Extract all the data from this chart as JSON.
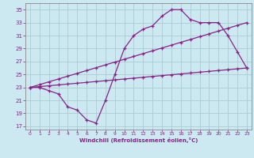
{
  "xlabel": "Windchill (Refroidissement éolien,°C)",
  "bg_color": "#cce8f0",
  "grid_color": "#aaccd4",
  "line_color": "#882288",
  "spine_color": "#888888",
  "x_ticks": [
    0,
    1,
    2,
    3,
    4,
    5,
    6,
    7,
    8,
    9,
    10,
    11,
    12,
    13,
    14,
    15,
    16,
    17,
    18,
    19,
    20,
    21,
    22,
    23
  ],
  "y_ticks": [
    17,
    19,
    21,
    23,
    25,
    27,
    29,
    31,
    33,
    35
  ],
  "ylim": [
    16.5,
    36.0
  ],
  "xlim": [
    -0.5,
    23.5
  ],
  "line1_x": [
    0,
    1,
    2,
    3,
    4,
    5,
    6,
    7,
    8,
    9,
    10,
    11,
    12,
    13,
    14,
    15,
    16,
    17,
    18,
    19,
    20,
    21,
    22,
    23
  ],
  "line1_y": [
    23,
    23,
    22.5,
    22,
    20,
    19.5,
    18,
    17.5,
    21,
    25,
    29,
    31,
    32,
    32.5,
    34,
    35,
    35,
    33.5,
    33,
    33,
    33,
    31,
    28.5,
    26
  ],
  "line2_x": [
    0,
    1,
    2,
    3,
    4,
    5,
    6,
    7,
    8,
    9,
    10,
    11,
    12,
    13,
    14,
    15,
    16,
    17,
    18,
    19,
    20,
    21,
    22,
    23
  ],
  "line2_y": [
    23.0,
    23.13,
    23.26,
    23.39,
    23.52,
    23.65,
    23.78,
    23.91,
    24.04,
    24.17,
    24.3,
    24.43,
    24.56,
    24.7,
    24.83,
    24.96,
    25.09,
    25.22,
    25.35,
    25.48,
    25.61,
    25.74,
    25.87,
    26.0
  ],
  "line3_x": [
    0,
    1,
    2,
    3,
    4,
    5,
    6,
    7,
    8,
    9,
    10,
    11,
    12,
    13,
    14,
    15,
    16,
    17,
    18,
    19,
    20,
    21,
    22,
    23
  ],
  "line3_y": [
    23.0,
    23.43,
    23.87,
    24.3,
    24.74,
    25.17,
    25.61,
    26.04,
    26.48,
    26.91,
    27.35,
    27.78,
    28.22,
    28.65,
    29.09,
    29.52,
    29.96,
    30.39,
    30.83,
    31.26,
    31.7,
    32.13,
    32.57,
    33.0
  ]
}
